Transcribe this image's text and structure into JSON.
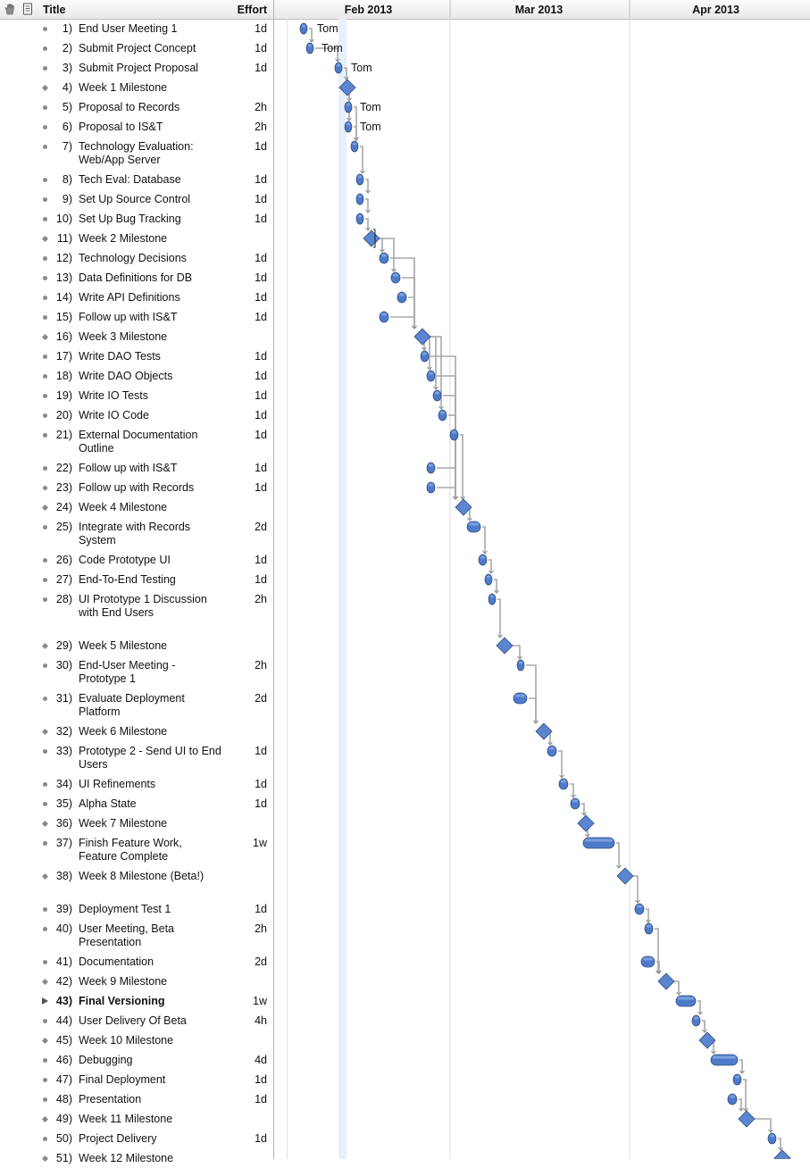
{
  "header": {
    "title_label": "Title",
    "effort_label": "Effort",
    "months": [
      "Feb 2013",
      "Mar 2013",
      "Apr 2013"
    ],
    "icons": [
      "hand-icon",
      "note-icon"
    ]
  },
  "assignee_label": "Tom",
  "colors": {
    "bar": "#4e7bc9",
    "bar_dark": "#2f4f86",
    "milestone": "#5b86cf",
    "today_band": "#e8f0fb",
    "connector": "#a8a8a8"
  },
  "tasks": [
    {
      "num": "1)",
      "title": "End User Meeting 1",
      "effort": "1d",
      "type": "task"
    },
    {
      "num": "2)",
      "title": "Submit Project Concept",
      "effort": "1d",
      "type": "task"
    },
    {
      "num": "3)",
      "title": "Submit Project Proposal",
      "effort": "1d",
      "type": "task"
    },
    {
      "num": "4)",
      "title": "Week 1 Milestone",
      "effort": "",
      "type": "milestone"
    },
    {
      "num": "5)",
      "title": "Proposal to Records",
      "effort": "2h",
      "type": "task"
    },
    {
      "num": "6)",
      "title": "Proposal to IS&T",
      "effort": "2h",
      "type": "task"
    },
    {
      "num": "7)",
      "title": "Technology Evaluation: Web/App Server",
      "effort": "1d",
      "type": "task"
    },
    {
      "num": "8)",
      "title": "Tech Eval: Database",
      "effort": "1d",
      "type": "task"
    },
    {
      "num": "9)",
      "title": "Set Up Source Control",
      "effort": "1d",
      "type": "task"
    },
    {
      "num": "10)",
      "title": "Set Up Bug Tracking",
      "effort": "1d",
      "type": "task"
    },
    {
      "num": "11)",
      "title": "Week 2 Milestone",
      "effort": "",
      "type": "milestone"
    },
    {
      "num": "12)",
      "title": "Technology Decisions",
      "effort": "1d",
      "type": "task"
    },
    {
      "num": "13)",
      "title": "Data Definitions for DB",
      "effort": "1d",
      "type": "task"
    },
    {
      "num": "14)",
      "title": "Write API Definitions",
      "effort": "1d",
      "type": "task"
    },
    {
      "num": "15)",
      "title": "Follow up with IS&T",
      "effort": "1d",
      "type": "task"
    },
    {
      "num": "16)",
      "title": "Week 3 Milestone",
      "effort": "",
      "type": "milestone"
    },
    {
      "num": "17)",
      "title": "Write DAO Tests",
      "effort": "1d",
      "type": "task"
    },
    {
      "num": "18)",
      "title": "Write DAO Objects",
      "effort": "1d",
      "type": "task"
    },
    {
      "num": "19)",
      "title": "Write IO Tests",
      "effort": "1d",
      "type": "task"
    },
    {
      "num": "20)",
      "title": "Write IO Code",
      "effort": "1d",
      "type": "task"
    },
    {
      "num": "21)",
      "title": "External Documentation Outline",
      "effort": "1d",
      "type": "task"
    },
    {
      "num": "22)",
      "title": "Follow up with IS&T",
      "effort": "1d",
      "type": "task"
    },
    {
      "num": "23)",
      "title": "Follow up with Records",
      "effort": "1d",
      "type": "task"
    },
    {
      "num": "24)",
      "title": "Week 4 Milestone",
      "effort": "",
      "type": "milestone"
    },
    {
      "num": "25)",
      "title": "Integrate with Records System",
      "effort": "2d",
      "type": "task"
    },
    {
      "num": "26)",
      "title": "Code Prototype UI",
      "effort": "1d",
      "type": "task"
    },
    {
      "num": "27)",
      "title": "End-To-End Testing",
      "effort": "1d",
      "type": "task"
    },
    {
      "num": "28)",
      "title": "UI Prototype 1 Discussion with End Users",
      "effort": "2h",
      "type": "task"
    },
    {
      "num": "29)",
      "title": "Week 5 Milestone",
      "effort": "",
      "type": "milestone"
    },
    {
      "num": "30)",
      "title": "End-User Meeting - Prototype 1",
      "effort": "2h",
      "type": "task"
    },
    {
      "num": "31)",
      "title": "Evaluate Deployment Platform",
      "effort": "2d",
      "type": "task"
    },
    {
      "num": "32)",
      "title": "Week 6 Milestone",
      "effort": "",
      "type": "milestone"
    },
    {
      "num": "33)",
      "title": "Prototype 2 - Send UI to End Users",
      "effort": "1d",
      "type": "task"
    },
    {
      "num": "34)",
      "title": "UI Refinements",
      "effort": "1d",
      "type": "task"
    },
    {
      "num": "35)",
      "title": "Alpha State",
      "effort": "1d",
      "type": "task"
    },
    {
      "num": "36)",
      "title": "Week 7 Milestone",
      "effort": "",
      "type": "milestone"
    },
    {
      "num": "37)",
      "title": "Finish Feature Work, Feature Complete",
      "effort": "1w",
      "type": "task"
    },
    {
      "num": "38)",
      "title": "Week 8 Milestone (Beta!)",
      "effort": "",
      "type": "milestone"
    },
    {
      "num": "39)",
      "title": "Deployment Test 1",
      "effort": "1d",
      "type": "task"
    },
    {
      "num": "40)",
      "title": "User Meeting, Beta Presentation",
      "effort": "2h",
      "type": "task"
    },
    {
      "num": "41)",
      "title": "Documentation",
      "effort": "2d",
      "type": "task"
    },
    {
      "num": "42)",
      "title": "Week 9 Milestone",
      "effort": "",
      "type": "milestone"
    },
    {
      "num": "43)",
      "title": "Final Versioning",
      "effort": "1w",
      "type": "group"
    },
    {
      "num": "44)",
      "title": "User Delivery Of Beta",
      "effort": "4h",
      "type": "task"
    },
    {
      "num": "45)",
      "title": "Week 10 Milestone",
      "effort": "",
      "type": "milestone"
    },
    {
      "num": "46)",
      "title": "Debugging",
      "effort": "4d",
      "type": "task"
    },
    {
      "num": "47)",
      "title": "Final Deployment",
      "effort": "1d",
      "type": "task"
    },
    {
      "num": "48)",
      "title": "Presentation",
      "effort": "1d",
      "type": "task"
    },
    {
      "num": "49)",
      "title": "Week 11 Milestone",
      "effort": "",
      "type": "milestone"
    },
    {
      "num": "50)",
      "title": "Project Delivery",
      "effort": "1d",
      "type": "task"
    },
    {
      "num": "51)",
      "title": "Week 12 Milestone",
      "effort": "",
      "type": "milestone"
    }
  ]
}
